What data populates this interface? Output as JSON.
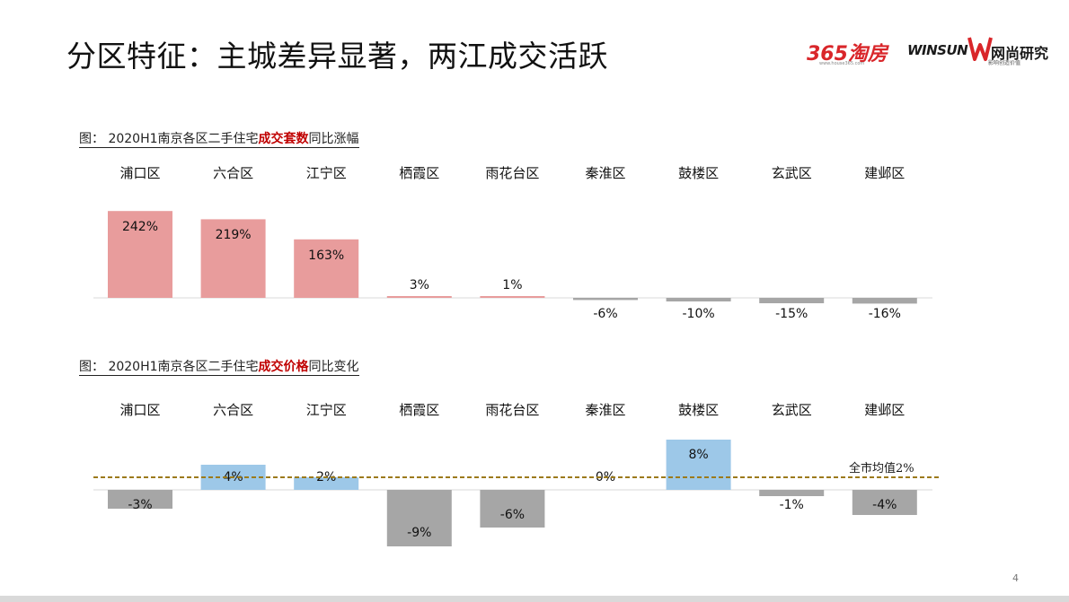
{
  "slide": {
    "title": "分区特征：主城差异显著，两江成交活跃",
    "page_number": "4"
  },
  "logos": {
    "house365_main": "365淘房",
    "house365_sub": "www.house365.com",
    "winsun_en": "WINSUN",
    "winsun_cn": "网尚研究",
    "winsun_tagline": "影响创造价值"
  },
  "colors": {
    "positive_volume": "#E89C9C",
    "positive_price": "#9DC8E8",
    "negative": "#A6A6A6",
    "highlight_text": "#C00000",
    "average_line": "#9C7A1A"
  },
  "chart_data": [
    {
      "type": "bar",
      "caption_prefix": "图：  2020H1南京各区二手住宅",
      "caption_highlight": "成交套数",
      "caption_suffix": "同比涨幅",
      "categories": [
        "浦口区",
        "六合区",
        "江宁区",
        "栖霞区",
        "雨花台区",
        "秦淮区",
        "鼓楼区",
        "玄武区",
        "建邺区"
      ],
      "values": [
        242,
        219,
        163,
        3,
        1,
        -6,
        -10,
        -15,
        -16
      ],
      "labels": [
        "242%",
        "219%",
        "163%",
        "3%",
        "1%",
        "-6%",
        "-10%",
        "-15%",
        "-16%"
      ],
      "unit": "%"
    },
    {
      "type": "bar",
      "caption_prefix": "图：  2020H1南京各区二手住宅",
      "caption_highlight": "成交价格",
      "caption_suffix": "同比变化",
      "categories": [
        "浦口区",
        "六合区",
        "江宁区",
        "栖霞区",
        "雨花台区",
        "秦淮区",
        "鼓楼区",
        "玄武区",
        "建邺区"
      ],
      "values": [
        -3,
        4,
        2,
        -9,
        -6,
        0,
        8,
        -1,
        -4
      ],
      "labels": [
        "-3%",
        "4%",
        "2%",
        "-9%",
        "-6%",
        "0%",
        "8%",
        "-1%",
        "-4%"
      ],
      "reference_line": {
        "value": 2,
        "label": "全市均值2%"
      },
      "unit": "%"
    }
  ]
}
